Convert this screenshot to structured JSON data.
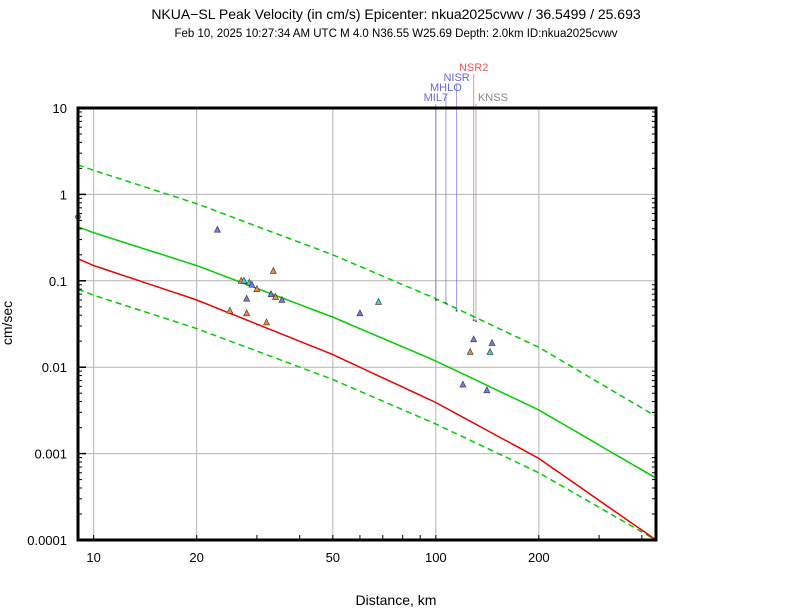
{
  "chart_data": {
    "type": "scatter",
    "title": "NKUA−SL Peak Velocity (in cm/s) Epicenter: nkua2025cvwv / 36.5499 / 25.693",
    "subtitle": "Feb 10, 2025 10:27:34 AM UTC   M 4.0   N36.55 W25.69   Depth: 2.0km   ID:nkua2025cvwv",
    "xlabel": "Distance, km",
    "ylabel": "cm/sec",
    "xscale": "log",
    "yscale": "log",
    "xlim": [
      9,
      440
    ],
    "ylim": [
      0.0001,
      10
    ],
    "grid": true,
    "x_ticks": [
      {
        "value": 10,
        "label": "10"
      },
      {
        "value": 20,
        "label": "20"
      },
      {
        "value": 50,
        "label": "50"
      },
      {
        "value": 100,
        "label": "100"
      },
      {
        "value": 200,
        "label": "200"
      }
    ],
    "y_ticks": [
      {
        "value": 10,
        "label": "10"
      },
      {
        "value": 1,
        "label": "1"
      },
      {
        "value": 0.1,
        "label": "0.1"
      },
      {
        "value": 0.01,
        "label": "0.01"
      },
      {
        "value": 0.001,
        "label": "0.001"
      },
      {
        "value": 0.0001,
        "label": "0.0001"
      }
    ],
    "curves": [
      {
        "color": "#00cc00",
        "dash": false,
        "points": [
          [
            9,
            0.42
          ],
          [
            10,
            0.36
          ],
          [
            20,
            0.15
          ],
          [
            50,
            0.038
          ],
          [
            100,
            0.0118
          ],
          [
            200,
            0.0032
          ],
          [
            440,
            0.00052
          ]
        ]
      },
      {
        "color": "#00cc00",
        "dash": true,
        "points": [
          [
            9,
            2.2
          ],
          [
            10,
            1.9
          ],
          [
            20,
            0.78
          ],
          [
            50,
            0.2
          ],
          [
            100,
            0.062
          ],
          [
            200,
            0.017
          ],
          [
            440,
            0.0027
          ]
        ]
      },
      {
        "color": "#00cc00",
        "dash": true,
        "points": [
          [
            9,
            0.08
          ],
          [
            10,
            0.068
          ],
          [
            20,
            0.028
          ],
          [
            50,
            0.0072
          ],
          [
            100,
            0.0022
          ],
          [
            200,
            0.0006
          ],
          [
            440,
            0.0001
          ]
        ]
      },
      {
        "color": "#ee0000",
        "dash": false,
        "points": [
          [
            9,
            0.18
          ],
          [
            10,
            0.15
          ],
          [
            20,
            0.06
          ],
          [
            50,
            0.014
          ],
          [
            100,
            0.0039
          ],
          [
            200,
            0.00088
          ],
          [
            440,
            0.0001
          ]
        ]
      }
    ],
    "points": [
      {
        "x": 23,
        "y": 0.39,
        "color": "#7777ee"
      },
      {
        "x": 25,
        "y": 0.045,
        "color": "#ee8844"
      },
      {
        "x": 27,
        "y": 0.1,
        "color": "#ee8844"
      },
      {
        "x": 27.5,
        "y": 0.1,
        "color": "#44cccc"
      },
      {
        "x": 28,
        "y": 0.062,
        "color": "#7777ee"
      },
      {
        "x": 28,
        "y": 0.042,
        "color": "#ee8844"
      },
      {
        "x": 28.5,
        "y": 0.095,
        "color": "#44cccc"
      },
      {
        "x": 29,
        "y": 0.09,
        "color": "#7777ee"
      },
      {
        "x": 30,
        "y": 0.08,
        "color": "#ee8844"
      },
      {
        "x": 32,
        "y": 0.033,
        "color": "#ee8844"
      },
      {
        "x": 33,
        "y": 0.07,
        "color": "#7777ee"
      },
      {
        "x": 33.5,
        "y": 0.13,
        "color": "#ee8844"
      },
      {
        "x": 34,
        "y": 0.065,
        "color": "#ee8844"
      },
      {
        "x": 35.5,
        "y": 0.06,
        "color": "#7777ee"
      },
      {
        "x": 60,
        "y": 0.042,
        "color": "#7777ee"
      },
      {
        "x": 68,
        "y": 0.057,
        "color": "#44cccc"
      },
      {
        "x": 120,
        "y": 0.0063,
        "color": "#7777ee"
      },
      {
        "x": 126,
        "y": 0.015,
        "color": "#ee8844"
      },
      {
        "x": 129,
        "y": 0.021,
        "color": "#7777ee"
      },
      {
        "x": 141,
        "y": 0.0054,
        "color": "#7777ee"
      },
      {
        "x": 144,
        "y": 0.015,
        "color": "#44cccc"
      },
      {
        "x": 146,
        "y": 0.019,
        "color": "#7777ee"
      }
    ],
    "left_marker": {
      "x": 9,
      "y": 0.55,
      "color": "#ee8844"
    },
    "stations": [
      {
        "name": "MIL7",
        "x": 100,
        "y_end": 0.06,
        "color": "#6666dd"
      },
      {
        "name": "MHLO",
        "x": 107,
        "y_end": 0.055,
        "color": "#6666dd"
      },
      {
        "name": "NISR",
        "x": 115,
        "y_end": 0.045,
        "color": "#6666dd"
      },
      {
        "name": "NSR2",
        "x": 129,
        "y_end": 0.035,
        "color": "#ee5555"
      },
      {
        "name": "KNSS",
        "x": 131,
        "y_end": 0.034,
        "color": "#888888"
      }
    ]
  }
}
